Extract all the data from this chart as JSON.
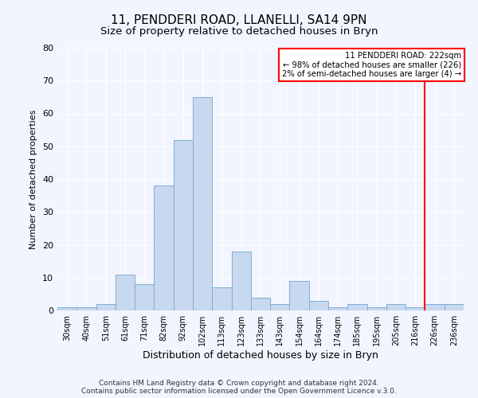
{
  "title": "11, PENDDERI ROAD, LLANELLI, SA14 9PN",
  "subtitle": "Size of property relative to detached houses in Bryn",
  "xlabel": "Distribution of detached houses by size in Bryn",
  "ylabel": "Number of detached properties",
  "bar_labels": [
    "30sqm",
    "40sqm",
    "51sqm",
    "61sqm",
    "71sqm",
    "82sqm",
    "92sqm",
    "102sqm",
    "113sqm",
    "123sqm",
    "133sqm",
    "143sqm",
    "154sqm",
    "164sqm",
    "174sqm",
    "185sqm",
    "195sqm",
    "205sqm",
    "216sqm",
    "226sqm",
    "236sqm"
  ],
  "bar_values": [
    1,
    1,
    2,
    11,
    8,
    38,
    52,
    65,
    7,
    18,
    4,
    2,
    9,
    3,
    1,
    2,
    1,
    2,
    1,
    2,
    2
  ],
  "bar_color": "#c8d8ef",
  "bar_edge_color": "#7bafd4",
  "ylim": [
    0,
    80
  ],
  "yticks": [
    0,
    10,
    20,
    30,
    40,
    50,
    60,
    70,
    80
  ],
  "vline_color": "red",
  "legend_title": "11 PENDDERI ROAD: 222sqm",
  "legend_line1": "← 98% of detached houses are smaller (226)",
  "legend_line2": "2% of semi-detached houses are larger (4) →",
  "legend_box_color": "red",
  "footer1": "Contains HM Land Registry data © Crown copyright and database right 2024.",
  "footer2": "Contains public sector information licensed under the Open Government Licence v.3.0.",
  "bg_color": "#f2f5ff",
  "grid_color": "white",
  "title_fontsize": 11,
  "subtitle_fontsize": 9.5,
  "footer_fontsize": 6.5
}
